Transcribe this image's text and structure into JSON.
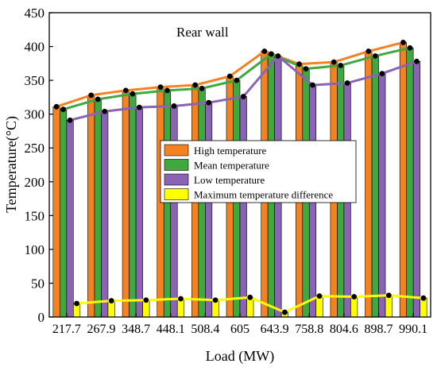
{
  "chart_data": {
    "type": "bar",
    "title": "Rear wall",
    "xlabel": "Load (MW)",
    "ylabel": "Temperature(°C)",
    "ylim": [
      0,
      450
    ],
    "yticks": [
      0,
      50,
      100,
      150,
      200,
      250,
      300,
      350,
      400,
      450
    ],
    "grid": false,
    "legend_position": "center",
    "categories": [
      "217.7",
      "267.9",
      "348.7",
      "448.1",
      "508.4",
      "605",
      "643.9",
      "758.8",
      "804.6",
      "898.7",
      "990.1"
    ],
    "series": [
      {
        "name": "High  temperature",
        "color": "#F58220",
        "values": [
          311,
          328,
          335,
          340,
          343,
          356,
          393,
          374,
          377,
          393,
          406
        ]
      },
      {
        "name": "Mean  temperature",
        "color": "#3FA83F",
        "values": [
          307,
          322,
          330,
          335,
          338,
          350,
          389,
          367,
          372,
          386,
          398
        ]
      },
      {
        "name": "Low  temperature",
        "color": "#8A63B5",
        "values": [
          291,
          304,
          310,
          312,
          317,
          326,
          386,
          343,
          346,
          360,
          378
        ]
      },
      {
        "name": "Maximum temperature difference",
        "color": "#FFFF00",
        "values": [
          20,
          24,
          25,
          27,
          25,
          29,
          7,
          31,
          30,
          32,
          28
        ]
      }
    ]
  }
}
